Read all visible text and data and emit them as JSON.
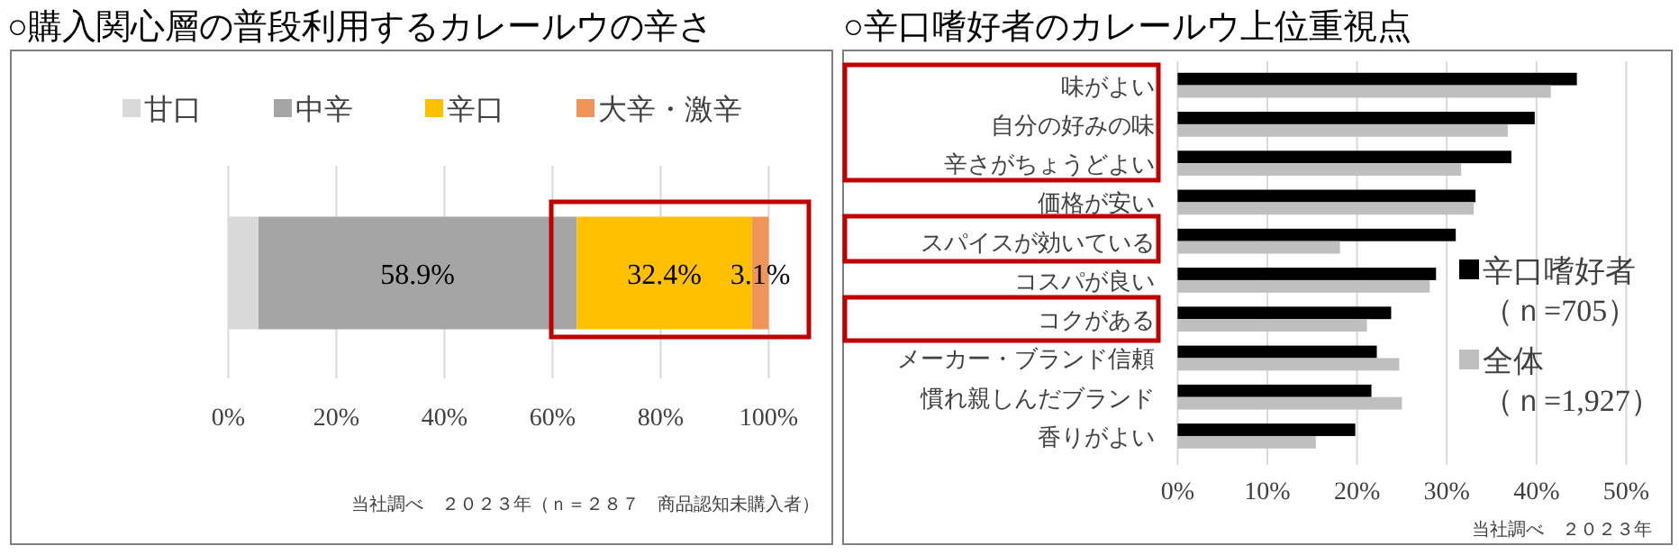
{
  "chart_data": [
    {
      "type": "bar",
      "orientation": "horizontal",
      "stacked": true,
      "title": "○購入関心層の普段利用するカレールウの辛さ",
      "categories": [
        null
      ],
      "series": [
        {
          "name": "甘口",
          "color": "#d9d9d9",
          "values": [
            5.6
          ],
          "value_labels": [
            null
          ]
        },
        {
          "name": "中辛",
          "color": "#a5a5a5",
          "values": [
            58.9
          ],
          "value_labels": [
            "58.9%"
          ]
        },
        {
          "name": "辛口",
          "color": "#ffc000",
          "values": [
            32.4
          ],
          "value_labels": [
            "32.4%"
          ]
        },
        {
          "name": "大辛・激辛",
          "color": "#f0955a",
          "values": [
            3.1
          ],
          "value_labels": [
            "3.1%"
          ]
        }
      ],
      "xlim": [
        0,
        100
      ],
      "xticks": [
        {
          "value": 0,
          "label": "0%"
        },
        {
          "value": 20,
          "label": "20%"
        },
        {
          "value": 40,
          "label": "40%"
        },
        {
          "value": 60,
          "label": "60%"
        },
        {
          "value": 80,
          "label": "80%"
        },
        {
          "value": 100,
          "label": "100%"
        }
      ],
      "grid": "x",
      "legend": "top",
      "annotations": [
        "当社調べ　２０２３年（ｎ＝２８７　商品認知未購入者）"
      ]
    },
    {
      "type": "bar",
      "orientation": "horizontal",
      "title": "○辛口嗜好者のカレールウ上位重視点",
      "categories": [
        "味がよい",
        "自分の好みの味",
        "辛さがちょうどよい",
        "価格が安い",
        "スパイスが効いている",
        "コスパが良い",
        "コクがある",
        "メーカー・ブランド信頼",
        "慣れ親しんだブランド",
        "香りがよい"
      ],
      "series": [
        {
          "name": "辛口嗜好者（ｎ=705）",
          "color": "#000000",
          "values": [
            44.5,
            39.8,
            37.2,
            33.2,
            31.0,
            28.8,
            23.8,
            22.2,
            21.6,
            19.8
          ]
        },
        {
          "name": "全体（ｎ=1,927）",
          "color": "#bfbfbf",
          "values": [
            41.6,
            36.8,
            31.6,
            33.0,
            18.1,
            28.1,
            21.1,
            24.7,
            25.0,
            15.4
          ]
        }
      ],
      "xlim": [
        0,
        50
      ],
      "xticks": [
        {
          "value": 0,
          "label": "0%"
        },
        {
          "value": 10,
          "label": "10%"
        },
        {
          "value": 20,
          "label": "20%"
        },
        {
          "value": 30,
          "label": "30%"
        },
        {
          "value": 40,
          "label": "40%"
        },
        {
          "value": 50,
          "label": "50%"
        }
      ],
      "grid": "x",
      "legend": "right",
      "annotations": [
        "当社調べ　２０２３年"
      ]
    }
  ]
}
